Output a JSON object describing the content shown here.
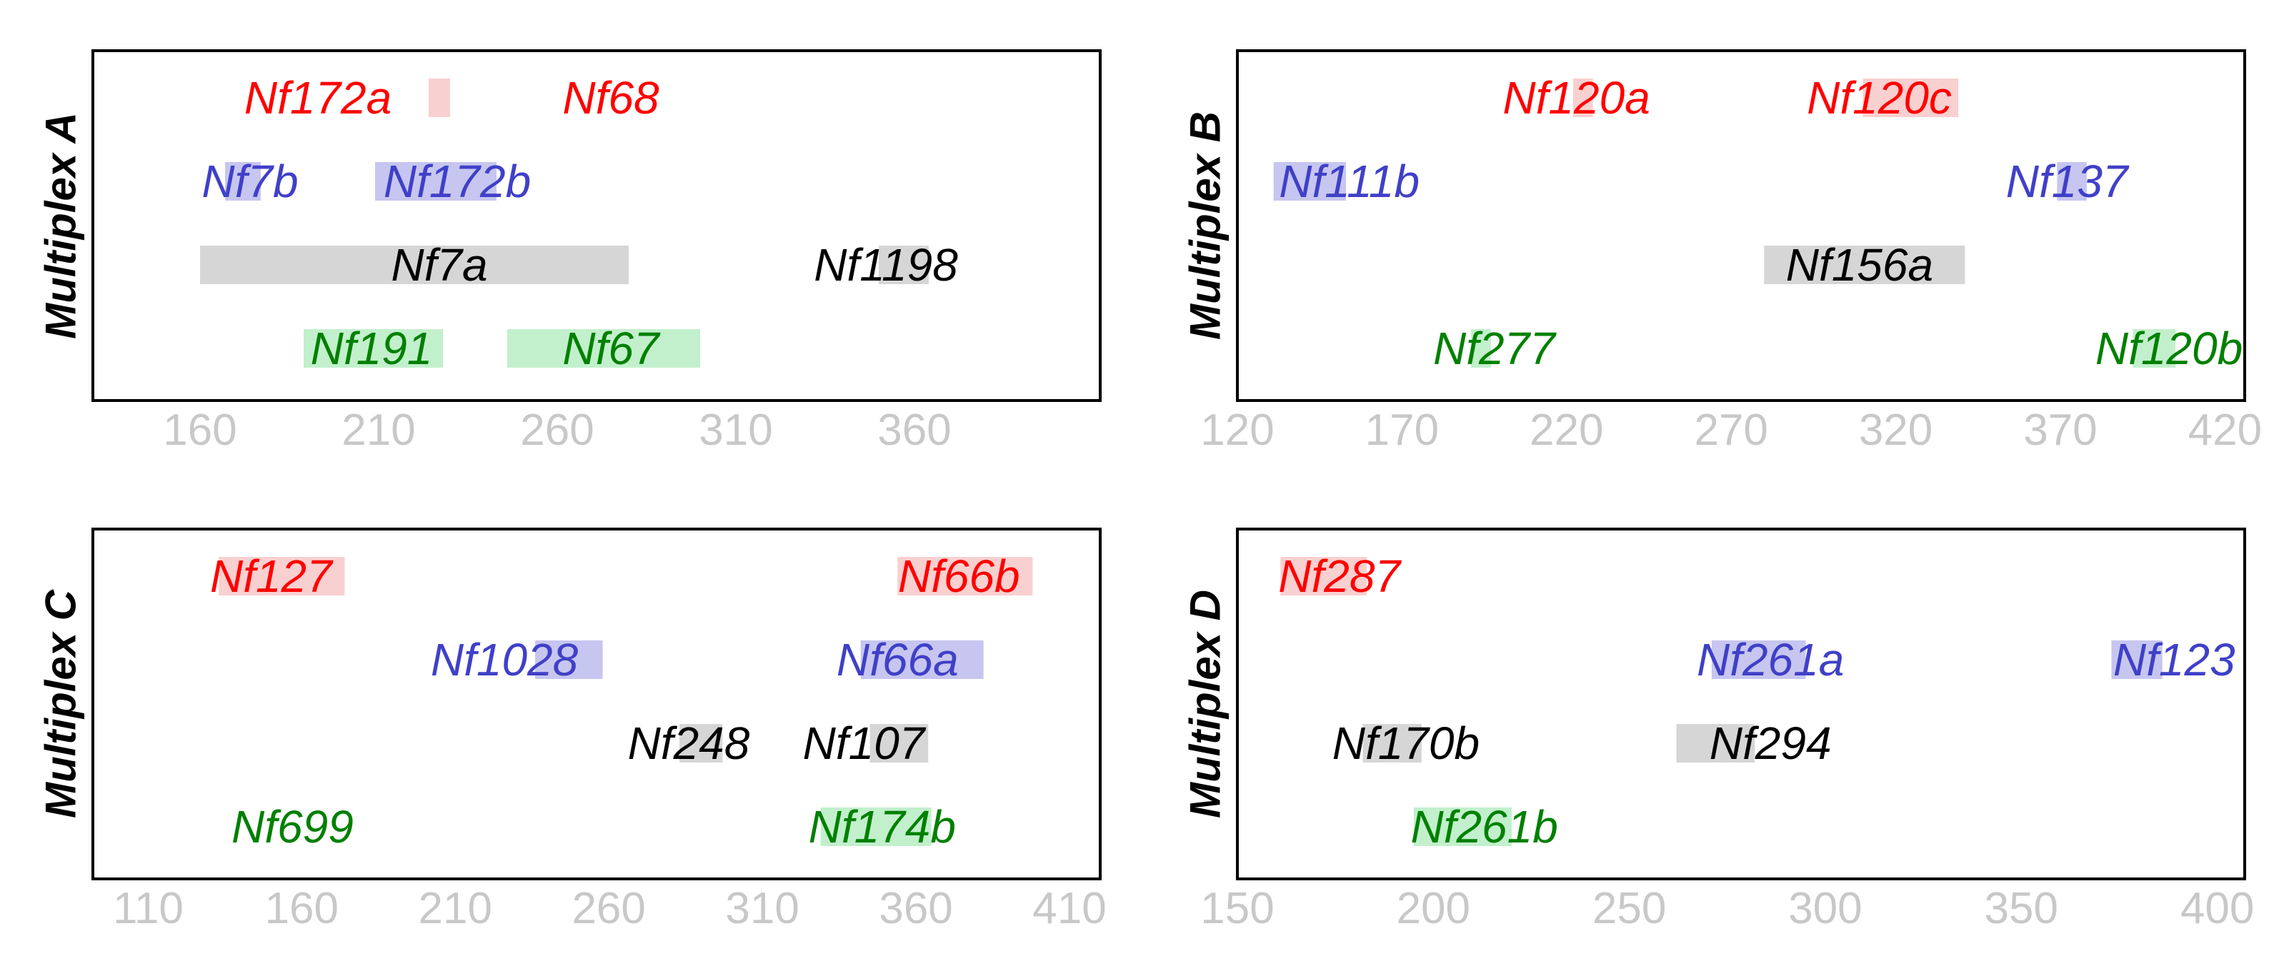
{
  "colors": {
    "red": "#ff0000",
    "red_band": "#f9d0d0",
    "blue": "#4040c8",
    "blue_band": "#c6c6f0",
    "black": "#000000",
    "black_band": "#d6d6d6",
    "green": "#008000",
    "green_band": "#c2f0cc",
    "tick": "#c8c8c8"
  },
  "chart_data": [
    {
      "type": "range",
      "title": "Multiplex A",
      "xlim": [
        130,
        412
      ],
      "ticks": [
        160,
        210,
        260,
        310,
        360
      ],
      "rows": [
        "red",
        "blue",
        "black",
        "green"
      ],
      "markers": [
        {
          "label": "Nf172a",
          "color": "red",
          "row": 0,
          "label_x": 193,
          "range": [
            224,
            230
          ]
        },
        {
          "label": "Nf68",
          "color": "red",
          "row": 0,
          "label_x": 275,
          "range": null
        },
        {
          "label": "Nf7b",
          "color": "blue",
          "row": 1,
          "label_x": 174,
          "range": [
            167,
            177
          ]
        },
        {
          "label": "Nf172b",
          "color": "blue",
          "row": 1,
          "label_x": 232,
          "range": [
            209,
            243
          ]
        },
        {
          "label": "Nf7a",
          "color": "black",
          "row": 2,
          "label_x": 227,
          "range": [
            160,
            280
          ]
        },
        {
          "label": "Nf1198",
          "color": "black",
          "row": 2,
          "label_x": 352,
          "range": [
            350,
            364
          ]
        },
        {
          "label": "Nf191",
          "color": "green",
          "row": 3,
          "label_x": 208,
          "range": [
            189,
            228
          ]
        },
        {
          "label": "Nf67",
          "color": "green",
          "row": 3,
          "label_x": 275,
          "range": [
            246,
            300
          ]
        }
      ]
    },
    {
      "type": "range",
      "title": "Multiplex B",
      "xlim": [
        120,
        426
      ],
      "ticks": [
        120,
        170,
        220,
        270,
        320,
        370,
        420
      ],
      "rows": [
        "red",
        "blue",
        "black",
        "green"
      ],
      "markers": [
        {
          "label": "Nf120a",
          "color": "red",
          "row": 0,
          "label_x": 223,
          "range": [
            222,
            228
          ]
        },
        {
          "label": "Nf120c",
          "color": "red",
          "row": 0,
          "label_x": 315,
          "range": [
            310,
            339
          ]
        },
        {
          "label": "Nf111b",
          "color": "blue",
          "row": 1,
          "label_x": 154,
          "range": [
            131,
            153
          ]
        },
        {
          "label": "Nf137",
          "color": "blue",
          "row": 1,
          "label_x": 372,
          "range": [
            369,
            378
          ]
        },
        {
          "label": "Nf156a",
          "color": "black",
          "row": 2,
          "label_x": 309,
          "range": [
            280,
            341
          ]
        },
        {
          "label": "Nf277",
          "color": "green",
          "row": 3,
          "label_x": 198,
          "range": [
            191,
            197
          ]
        },
        {
          "label": "Nf120b",
          "color": "green",
          "row": 3,
          "label_x": 403,
          "range": [
            392,
            405
          ]
        }
      ]
    },
    {
      "type": "range",
      "title": "Multiplex C",
      "xlim": [
        92,
        420
      ],
      "ticks": [
        110,
        160,
        210,
        260,
        310,
        360,
        410
      ],
      "rows": [
        "red",
        "blue",
        "black",
        "green"
      ],
      "markers": [
        {
          "label": "Nf127",
          "color": "red",
          "row": 0,
          "label_x": 150,
          "range": [
            133,
            174
          ]
        },
        {
          "label": "Nf66b",
          "color": "red",
          "row": 0,
          "label_x": 374,
          "range": [
            354,
            398
          ]
        },
        {
          "label": "Nf1028",
          "color": "blue",
          "row": 1,
          "label_x": 226,
          "range": [
            236,
            258
          ]
        },
        {
          "label": "Nf66a",
          "color": "blue",
          "row": 1,
          "label_x": 354,
          "range": [
            342,
            382
          ]
        },
        {
          "label": "Nf248",
          "color": "black",
          "row": 2,
          "label_x": 286,
          "range": [
            283,
            297
          ]
        },
        {
          "label": "Nf107",
          "color": "black",
          "row": 2,
          "label_x": 343,
          "range": [
            345,
            364
          ]
        },
        {
          "label": "Nf699",
          "color": "green",
          "row": 3,
          "label_x": 157,
          "range": null
        },
        {
          "label": "Nf174b",
          "color": "green",
          "row": 3,
          "label_x": 349,
          "range": [
            329,
            365
          ]
        }
      ]
    },
    {
      "type": "range",
      "title": "Multiplex D",
      "xlim": [
        150,
        407
      ],
      "ticks": [
        150,
        200,
        250,
        300,
        350,
        400
      ],
      "rows": [
        "red",
        "blue",
        "black",
        "green"
      ],
      "markers": [
        {
          "label": "Nf287",
          "color": "red",
          "row": 0,
          "label_x": 176,
          "range": [
            161,
            183
          ]
        },
        {
          "label": "Nf261a",
          "color": "blue",
          "row": 1,
          "label_x": 286,
          "range": [
            271,
            295
          ]
        },
        {
          "label": "Nf123",
          "color": "blue",
          "row": 1,
          "label_x": 389,
          "range": [
            373,
            386
          ]
        },
        {
          "label": "Nf170b",
          "color": "black",
          "row": 2,
          "label_x": 193,
          "range": [
            182,
            197
          ]
        },
        {
          "label": "Nf294",
          "color": "black",
          "row": 2,
          "label_x": 286,
          "range": [
            262,
            282
          ]
        },
        {
          "label": "Nf261b",
          "color": "green",
          "row": 3,
          "label_x": 213,
          "range": [
            195,
            220
          ]
        }
      ]
    }
  ]
}
